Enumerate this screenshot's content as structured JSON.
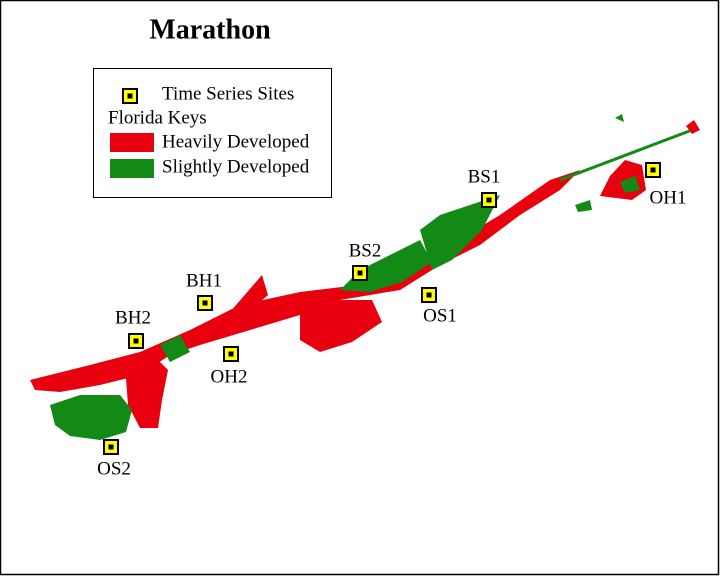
{
  "title": "Marathon",
  "legend": {
    "sites_label": "Time Series Sites",
    "group_label": "Florida Keys",
    "items": [
      "Heavily Developed",
      "Slightly Developed"
    ]
  },
  "sites": [
    "BS1",
    "OH1",
    "BS2",
    "OS1",
    "BH1",
    "BH2",
    "OH2",
    "OS2"
  ]
}
